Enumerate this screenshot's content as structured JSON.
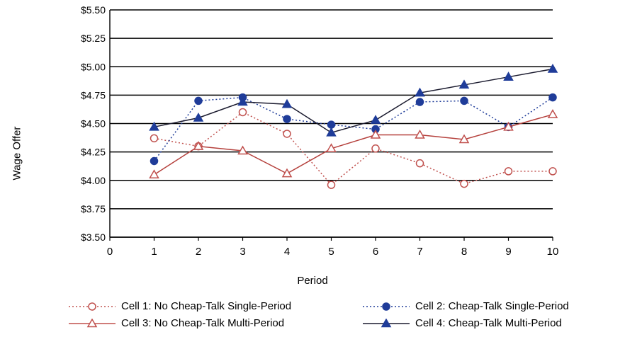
{
  "chart_data": {
    "type": "line",
    "xlabel": "Period",
    "ylabel": "Wage Offer",
    "x_ticks": [
      "0",
      "1",
      "2",
      "3",
      "4",
      "5",
      "6",
      "7",
      "8",
      "9",
      "10"
    ],
    "y_ticks": [
      "$3.50",
      "$3.75",
      "$4.00",
      "$4.25",
      "$4.50",
      "$4.75",
      "$5.00",
      "$5.25",
      "$5.50"
    ],
    "xlim": [
      0,
      10
    ],
    "ylim": [
      3.5,
      5.5
    ],
    "grid": "horizontal",
    "legend_position": "bottom",
    "x": [
      1,
      2,
      3,
      4,
      5,
      6,
      7,
      8,
      9,
      10
    ],
    "series": [
      {
        "name": "Cell 1: No Cheap-Talk Single-Period",
        "style": "dotted",
        "marker": "open-circle",
        "color": "#c0504d",
        "values": [
          4.37,
          4.3,
          4.6,
          4.41,
          3.96,
          4.28,
          4.15,
          3.97,
          4.08,
          4.08
        ]
      },
      {
        "name": "Cell 2: Cheap-Talk Single-Period",
        "style": "dotted",
        "marker": "filled-circle",
        "color": "#1f3c99",
        "values": [
          4.17,
          4.7,
          4.73,
          4.54,
          4.49,
          4.45,
          4.69,
          4.7,
          4.47,
          4.73
        ]
      },
      {
        "name": "Cell 3: No Cheap-Talk Multi-Period",
        "style": "solid",
        "marker": "open-triangle",
        "color": "#c0504d",
        "values": [
          4.05,
          4.3,
          4.26,
          4.06,
          4.28,
          4.4,
          4.4,
          4.36,
          4.47,
          4.58
        ]
      },
      {
        "name": "Cell 4: Cheap-Talk Multi-Period",
        "style": "solid",
        "marker": "filled-triangle",
        "color": "#1f3c99",
        "values": [
          4.47,
          4.55,
          4.69,
          4.67,
          4.42,
          4.53,
          4.77,
          4.84,
          4.91,
          4.98
        ]
      }
    ]
  }
}
